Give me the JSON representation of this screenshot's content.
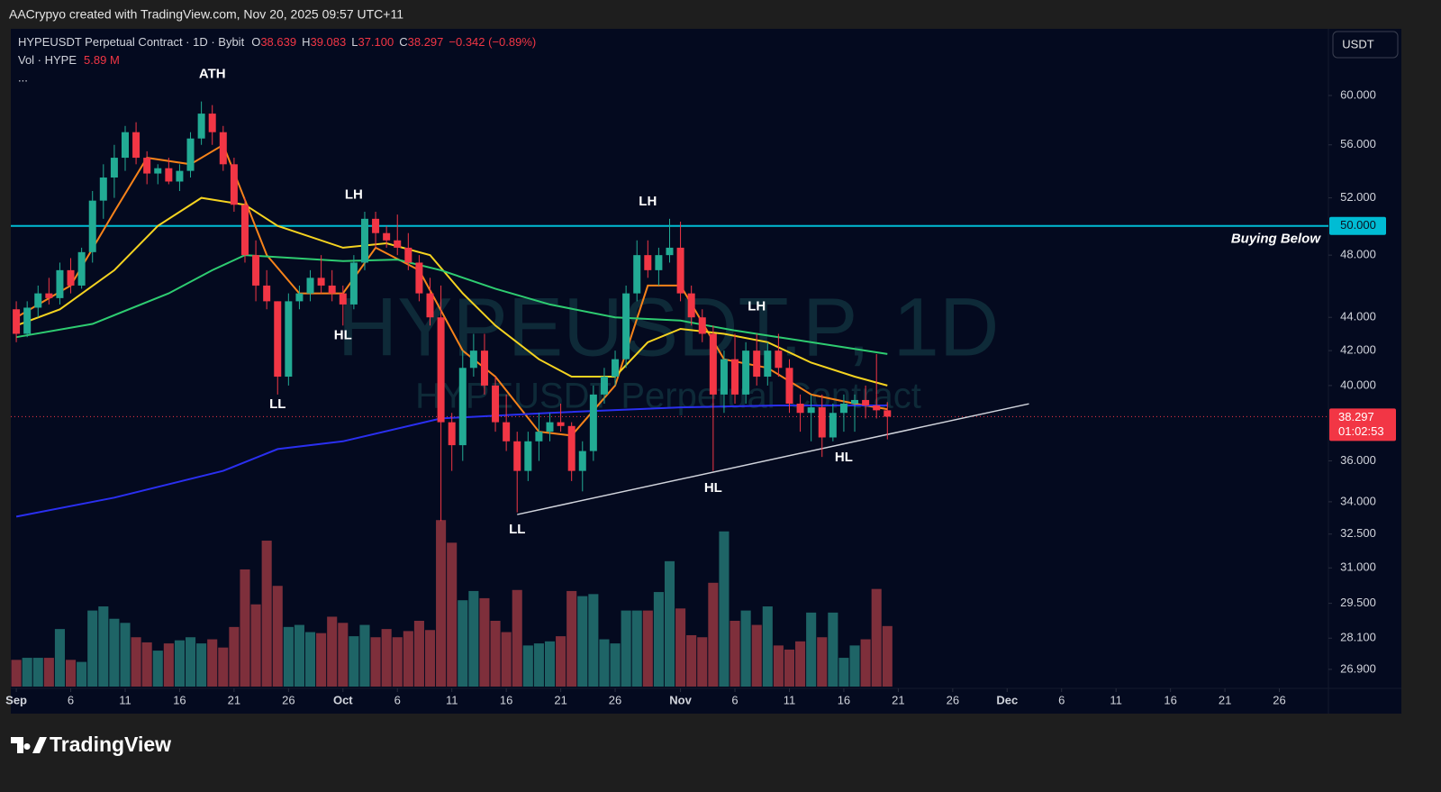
{
  "header": {
    "credit": "AACrypyo created with TradingView.com, Nov 20, 2025 09:57 UTC+11",
    "brand": "TradingView"
  },
  "chart_data": {
    "type": "candlestick",
    "legend": {
      "symbol": "HYPEUSDT Perpetual Contract · 1D · Bybit",
      "ohlc": [
        {
          "key": "O",
          "value": "38.639"
        },
        {
          "key": "H",
          "value": "39.083"
        },
        {
          "key": "L",
          "value": "37.100"
        },
        {
          "key": "C",
          "value": "38.297"
        }
      ],
      "change": "−0.342 (−0.89%)",
      "volume_name": "Vol · HYPE",
      "volume_value": "5.89 M",
      "more": "..."
    },
    "currency": "USDT",
    "watermark": [
      "HYPEUSDT.P, 1D",
      "HYPEUSDT Perpetual Contract"
    ],
    "x": [
      "2025-09-01",
      "2025-09-02",
      "2025-09-03",
      "2025-09-04",
      "2025-09-05",
      "2025-09-06",
      "2025-09-07",
      "2025-09-08",
      "2025-09-09",
      "2025-09-10",
      "2025-09-11",
      "2025-09-12",
      "2025-09-13",
      "2025-09-14",
      "2025-09-15",
      "2025-09-16",
      "2025-09-17",
      "2025-09-18",
      "2025-09-19",
      "2025-09-20",
      "2025-09-21",
      "2025-09-22",
      "2025-09-23",
      "2025-09-24",
      "2025-09-25",
      "2025-09-26",
      "2025-09-27",
      "2025-09-28",
      "2025-09-29",
      "2025-09-30",
      "2025-10-01",
      "2025-10-02",
      "2025-10-03",
      "2025-10-04",
      "2025-10-05",
      "2025-10-06",
      "2025-10-07",
      "2025-10-08",
      "2025-10-09",
      "2025-10-10",
      "2025-10-11",
      "2025-10-12",
      "2025-10-13",
      "2025-10-14",
      "2025-10-15",
      "2025-10-16",
      "2025-10-17",
      "2025-10-18",
      "2025-10-19",
      "2025-10-20",
      "2025-10-21",
      "2025-10-22",
      "2025-10-23",
      "2025-10-24",
      "2025-10-25",
      "2025-10-26",
      "2025-10-27",
      "2025-10-28",
      "2025-10-29",
      "2025-10-30",
      "2025-10-31",
      "2025-11-01",
      "2025-11-02",
      "2025-11-03",
      "2025-11-04",
      "2025-11-05",
      "2025-11-06",
      "2025-11-07",
      "2025-11-08",
      "2025-11-09",
      "2025-11-10",
      "2025-11-11",
      "2025-11-12",
      "2025-11-13",
      "2025-11-14",
      "2025-11-15",
      "2025-11-16",
      "2025-11-17",
      "2025-11-18",
      "2025-11-19",
      "2025-11-20"
    ],
    "open": [
      44.5,
      43,
      44.6,
      45.5,
      45.2,
      47,
      46,
      48.2,
      51.8,
      53.5,
      55,
      57,
      55,
      53.8,
      54.2,
      53.2,
      54,
      56.5,
      58.5,
      57,
      54.5,
      51.5,
      48,
      46,
      45,
      40.5,
      45,
      45.5,
      46.5,
      46,
      45.5,
      44.8,
      47.5,
      50.5,
      49.5,
      49,
      48.5,
      47.5,
      45.5,
      44,
      38,
      36.8,
      41,
      42,
      40,
      38,
      37,
      35.5,
      37,
      37.5,
      38,
      37.8,
      35.5,
      36.5,
      39.5,
      40.5,
      41.5,
      45.5,
      48,
      47,
      48,
      48.5,
      45.5,
      44,
      43,
      39.5,
      41.5,
      39.5,
      42,
      40.5,
      42,
      41,
      39,
      38.5,
      38.8,
      37.2,
      38.5,
      39,
      39.2,
      38.9,
      38.639
    ],
    "high": [
      45,
      45,
      46,
      46.5,
      47.5,
      47.8,
      48.5,
      52.5,
      54.5,
      56,
      57.5,
      57.8,
      55.5,
      54.5,
      55,
      54.5,
      57,
      59.5,
      59.2,
      57.5,
      55,
      52,
      49,
      47,
      45,
      45.5,
      46,
      47,
      48,
      47,
      46,
      48,
      51,
      51,
      50,
      50.8,
      49.5,
      48,
      46.5,
      46,
      38.5,
      42,
      43,
      43,
      40.5,
      39.5,
      37.5,
      37.5,
      38.5,
      38.5,
      39,
      38,
      37,
      40,
      41,
      42,
      46,
      49,
      49,
      48.5,
      50.5,
      50.3,
      46,
      44.5,
      43.5,
      42,
      43,
      42.5,
      43,
      42.5,
      43,
      41.5,
      39.5,
      39.5,
      39.5,
      39,
      39.5,
      39.5,
      40,
      41.8,
      39.083
    ],
    "low": [
      42.5,
      42.8,
      44,
      44.8,
      44.8,
      45.5,
      45.8,
      47.5,
      50.5,
      52,
      54,
      54.5,
      53,
      53,
      53,
      52.5,
      53.5,
      56,
      56,
      54,
      51,
      47.5,
      45,
      44.5,
      39.5,
      40,
      44.5,
      45,
      45.5,
      45,
      43.5,
      44.5,
      47,
      48.5,
      48.5,
      48,
      47,
      45,
      43.5,
      33.1,
      35.5,
      36,
      40.5,
      39.5,
      37.5,
      36.5,
      33.5,
      35,
      36,
      37,
      37.5,
      35,
      34.5,
      36,
      39,
      40,
      41,
      45,
      46.5,
      46,
      47.5,
      45,
      43.5,
      42.5,
      35.5,
      38.5,
      39,
      39,
      40,
      40,
      40.5,
      38.5,
      37.5,
      37,
      36.2,
      37,
      37.5,
      37.5,
      38.2,
      38.2,
      37.1
    ],
    "close": [
      43,
      44.6,
      45.5,
      45.2,
      47,
      46,
      48.2,
      51.8,
      53.5,
      55,
      57,
      55,
      53.8,
      54.2,
      53.2,
      54,
      56.5,
      58.5,
      57,
      54.5,
      51.5,
      48,
      46,
      45,
      40.5,
      45,
      45.5,
      46.5,
      46,
      45.5,
      44.8,
      47.5,
      50.5,
      49.5,
      49,
      48.5,
      47.5,
      45.5,
      44,
      38,
      36.8,
      41,
      42,
      40,
      38,
      37,
      35.5,
      37,
      37.5,
      38,
      37.8,
      35.5,
      36.5,
      39.5,
      40.5,
      41.5,
      45.5,
      48,
      47,
      48,
      48.5,
      45.5,
      44,
      43,
      39.5,
      41.5,
      39.5,
      42,
      40.5,
      42,
      41,
      39,
      38.5,
      38.8,
      37.2,
      38.5,
      39,
      39.2,
      38.9,
      38.64,
      38.297
    ],
    "volume": [
      2.6,
      2.8,
      2.8,
      2.8,
      5.6,
      2.6,
      2.4,
      7.4,
      7.8,
      6.6,
      6.2,
      4.8,
      4.3,
      3.5,
      4.2,
      4.5,
      4.8,
      4.2,
      4.6,
      3.8,
      5.8,
      11.4,
      8.0,
      14.2,
      9.8,
      5.8,
      6.0,
      5.3,
      5.2,
      6.8,
      6.2,
      4.9,
      6.0,
      4.8,
      5.6,
      4.8,
      5.4,
      6.4,
      5.5,
      16.2,
      14.0,
      8.4,
      9.3,
      8.6,
      6.4,
      5.3,
      9.4,
      4.0,
      4.2,
      4.4,
      4.9,
      9.3,
      8.8,
      9.0,
      4.6,
      4.2,
      7.4,
      7.4,
      7.4,
      9.2,
      12.2,
      7.6,
      5.0,
      4.8,
      10.1,
      15.1,
      6.4,
      7.4,
      6.0,
      7.8,
      4.0,
      3.6,
      4.4,
      7.2,
      4.8,
      7.2,
      2.8,
      4.0,
      4.6,
      9.5,
      5.89
    ],
    "up_color": "#22ab94",
    "down_color": "#f23645",
    "volume_up_color": "#1e6466",
    "volume_down_color": "#7e2f3b",
    "moving_averages": [
      {
        "color": "#f7831a",
        "x": [
          "2025-09-01",
          "2025-09-06",
          "2025-09-10",
          "2025-09-13",
          "2025-09-17",
          "2025-09-20",
          "2025-09-24",
          "2025-09-27",
          "2025-10-01",
          "2025-10-04",
          "2025-10-08",
          "2025-10-12",
          "2025-10-15",
          "2025-10-19",
          "2025-10-22",
          "2025-10-26",
          "2025-10-29",
          "2025-11-01",
          "2025-11-05",
          "2025-11-09",
          "2025-11-13",
          "2025-11-17",
          "2025-11-20"
        ],
        "values": [
          44,
          46,
          51,
          55,
          54.5,
          56,
          48,
          45.5,
          45.5,
          48.5,
          47,
          42,
          40.5,
          37.5,
          37.3,
          40,
          46,
          46,
          41.5,
          41,
          39.5,
          39,
          38.7
        ]
      },
      {
        "color": "#f5d320",
        "x": [
          "2025-09-01",
          "2025-09-05",
          "2025-09-10",
          "2025-09-14",
          "2025-09-18",
          "2025-09-22",
          "2025-09-25",
          "2025-10-01",
          "2025-10-05",
          "2025-10-09",
          "2025-10-12",
          "2025-10-15",
          "2025-10-19",
          "2025-10-22",
          "2025-10-26",
          "2025-10-29",
          "2025-11-01",
          "2025-11-05",
          "2025-11-09",
          "2025-11-13",
          "2025-11-17",
          "2025-11-20"
        ],
        "values": [
          43.5,
          44.5,
          47,
          50,
          52,
          51.5,
          50,
          48.5,
          48.8,
          48,
          45.5,
          43.5,
          41.5,
          40.5,
          40.5,
          42.5,
          43.3,
          43,
          42.5,
          41.3,
          40.5,
          40
        ]
      },
      {
        "color": "#2ecc71",
        "x": [
          "2025-09-01",
          "2025-09-08",
          "2025-09-15",
          "2025-09-19",
          "2025-09-22",
          "2025-10-01",
          "2025-10-06",
          "2025-10-10",
          "2025-10-15",
          "2025-10-20",
          "2025-10-26",
          "2025-11-01",
          "2025-11-06",
          "2025-11-10",
          "2025-11-15",
          "2025-11-20"
        ],
        "values": [
          42.8,
          43.6,
          45.5,
          47,
          48,
          47.6,
          47.7,
          47,
          45.8,
          44.8,
          44,
          43.8,
          43.2,
          42.8,
          42.3,
          41.8
        ]
      },
      {
        "color": "#2a2ff0",
        "x": [
          "2025-09-01",
          "2025-09-10",
          "2025-09-20",
          "2025-09-25",
          "2025-10-01",
          "2025-10-10",
          "2025-10-20",
          "2025-11-01",
          "2025-11-10",
          "2025-11-20"
        ],
        "values": [
          33.3,
          34.2,
          35.5,
          36.6,
          37,
          38.2,
          38.5,
          38.8,
          38.9,
          38.9
        ]
      }
    ],
    "annotations": [
      {
        "text": "ATH",
        "x": "2025-09-19",
        "y": 61.8
      },
      {
        "text": "LH",
        "x": "2025-10-02",
        "y": 52.2
      },
      {
        "text": "HL",
        "x": "2025-10-01",
        "y": 42.9
      },
      {
        "text": "LL",
        "x": "2025-09-25",
        "y": 38.96
      },
      {
        "text": "LH",
        "x": "2025-10-29",
        "y": 51.7
      },
      {
        "text": "LL",
        "x": "2025-10-17",
        "y": 32.7
      },
      {
        "text": "HL",
        "x": "2025-11-04",
        "y": 34.65
      },
      {
        "text": "LH",
        "x": "2025-11-08",
        "y": 44.64
      },
      {
        "text": "HL",
        "x": "2025-11-16",
        "y": 36.17
      }
    ],
    "trendline": {
      "x": [
        "2025-10-17",
        "2025-12-03"
      ],
      "values": [
        33.4,
        38.99
      ],
      "color": "#d1d4dc"
    },
    "horizontal_level": {
      "value": 50,
      "label": "50.000",
      "text": "Buying Below",
      "color": "#00bcd4"
    },
    "last_price": {
      "value": 38.297,
      "label": "38.297",
      "countdown": "01:02:53",
      "color": "#f23645"
    },
    "xlim": [
      "2025-08-31",
      "2025-12-31"
    ],
    "xticks": [
      {
        "value": "2025-09-01",
        "label": "Sep"
      },
      {
        "value": "2025-09-06",
        "label": "6"
      },
      {
        "value": "2025-09-11",
        "label": "11"
      },
      {
        "value": "2025-09-16",
        "label": "16"
      },
      {
        "value": "2025-09-21",
        "label": "21"
      },
      {
        "value": "2025-09-26",
        "label": "26"
      },
      {
        "value": "2025-10-01",
        "label": "Oct"
      },
      {
        "value": "2025-10-06",
        "label": "6"
      },
      {
        "value": "2025-10-11",
        "label": "11"
      },
      {
        "value": "2025-10-16",
        "label": "16"
      },
      {
        "value": "2025-10-21",
        "label": "21"
      },
      {
        "value": "2025-10-26",
        "label": "26"
      },
      {
        "value": "2025-11-01",
        "label": "Nov"
      },
      {
        "value": "2025-11-06",
        "label": "6"
      },
      {
        "value": "2025-11-11",
        "label": "11"
      },
      {
        "value": "2025-11-16",
        "label": "16"
      },
      {
        "value": "2025-11-21",
        "label": "21"
      },
      {
        "value": "2025-11-26",
        "label": "26"
      },
      {
        "value": "2025-12-01",
        "label": "Dec"
      },
      {
        "value": "2025-12-06",
        "label": "6"
      },
      {
        "value": "2025-12-11",
        "label": "11"
      },
      {
        "value": "2025-12-16",
        "label": "16"
      },
      {
        "value": "2025-12-21",
        "label": "21"
      },
      {
        "value": "2025-12-26",
        "label": "26"
      }
    ],
    "ylim": [
      26.26,
      65.86
    ],
    "log_scale": true,
    "yticks": [
      {
        "value": 60,
        "label": "60.000"
      },
      {
        "value": 56,
        "label": "56.000"
      },
      {
        "value": 52,
        "label": "52.000"
      },
      {
        "value": 48,
        "label": "48.000"
      },
      {
        "value": 44,
        "label": "44.000"
      },
      {
        "value": 42,
        "label": "42.000"
      },
      {
        "value": 40,
        "label": "40.000"
      },
      {
        "value": 36,
        "label": "36.000"
      },
      {
        "value": 34,
        "label": "34.000"
      },
      {
        "value": 32.5,
        "label": "32.500"
      },
      {
        "value": 31,
        "label": "31.000"
      },
      {
        "value": 29.5,
        "label": "29.500"
      },
      {
        "value": 28.1,
        "label": "28.100"
      },
      {
        "value": 26.9,
        "label": "26.900"
      }
    ],
    "volume_ylim": [
      0,
      64
    ]
  }
}
